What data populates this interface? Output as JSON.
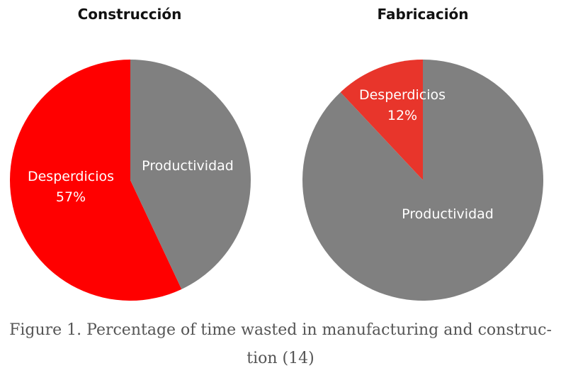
{
  "chart_data": [
    {
      "type": "pie",
      "title": "Construcción",
      "slices": [
        {
          "label": "Desperdicios",
          "value": 57,
          "value_label": "57%",
          "color": "#ff0000"
        },
        {
          "label": "Productividad",
          "value": 43,
          "value_label": "",
          "color": "#808080"
        }
      ]
    },
    {
      "type": "pie",
      "title": "Fabricación",
      "slices": [
        {
          "label": "Desperdicios",
          "value": 12,
          "value_label": "12%",
          "color": "#e8352b"
        },
        {
          "label": "Productividad",
          "value": 88,
          "value_label": "",
          "color": "#808080"
        }
      ]
    }
  ],
  "caption": {
    "line1": "Figure 1. Percentage of time wasted in manufacturing and construc-",
    "line2": "tion (14)"
  }
}
